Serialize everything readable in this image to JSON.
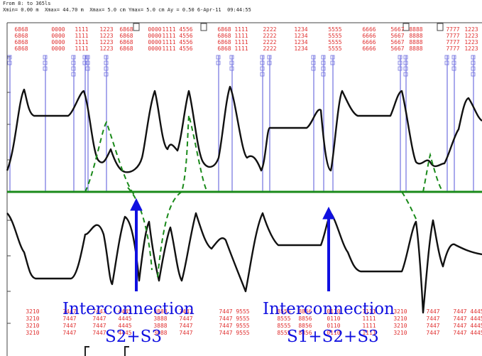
{
  "header": {
    "line1": "From 8: to 365ls",
    "line2": "Xmin= 0.00 m  Xmax= 44.70 m  Xmax= 5.0 cm Ymax= 5.0 cm Ay = 0.50 6-Apr-11  09:44:55"
  },
  "annotations": [
    {
      "line1": "Interconnection",
      "line2": "S2+S3"
    },
    {
      "line1": "Interconnection",
      "line2": "S1+S2+S3"
    }
  ],
  "top_codes": [
    "6868",
    "0000",
    "1111",
    "1223",
    "6868",
    "0000",
    "1111",
    "4556",
    "6868",
    "1111",
    "2222",
    "1234",
    "5555",
    "6666",
    "5667",
    "8888",
    "7777",
    "1223"
  ],
  "bottom_codes": [
    "3210",
    "7447",
    "7447",
    "4445",
    "3888",
    "7447",
    "7447",
    "9555",
    "8555",
    "8856",
    "0110",
    "1111"
  ],
  "colors": {
    "trace": "#111111",
    "baseline": "#1a8a1a",
    "dashed": "#1a8a1a",
    "markers": "#7070e0",
    "codes": "#e03030",
    "arrow": "#1010e0"
  }
}
